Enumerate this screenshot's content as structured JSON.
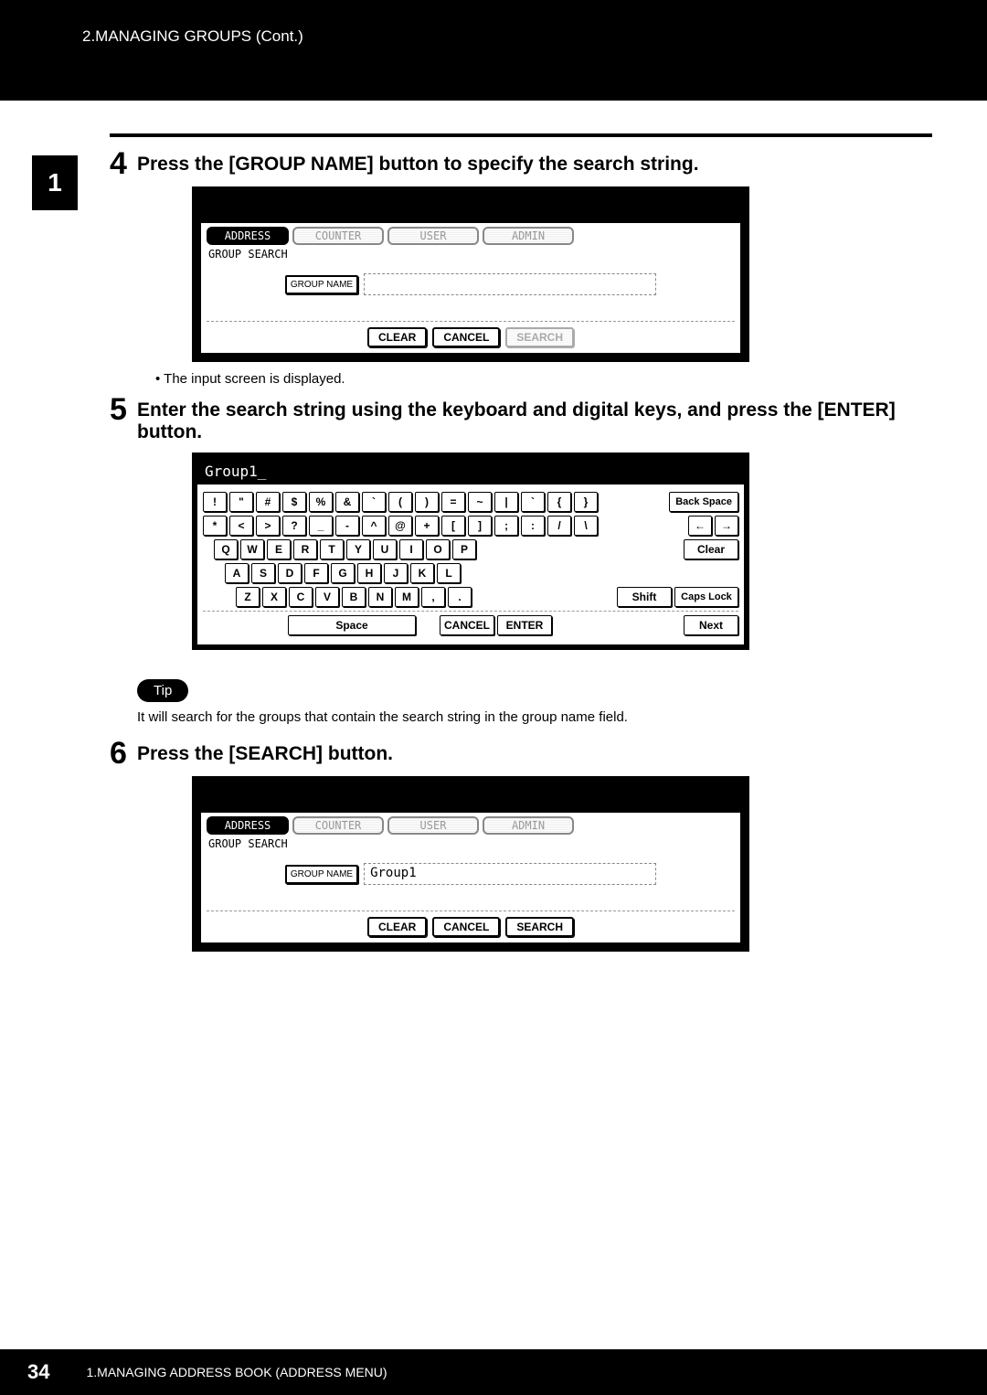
{
  "header": {
    "breadcrumb": "2.MANAGING GROUPS (Cont.)"
  },
  "sideTab": "1",
  "step4": {
    "num": "4",
    "title": "Press the [GROUP NAME] button to specify the search string.",
    "tabs": {
      "address": "ADDRESS",
      "counter": "COUNTER",
      "user": "USER",
      "admin": "ADMIN"
    },
    "sublabel": "GROUP SEARCH",
    "groupNameBtn": "GROUP NAME",
    "groupNameValue": "",
    "clear": "CLEAR",
    "cancel": "CANCEL",
    "search": "SEARCH",
    "bullet": "The input screen is displayed."
  },
  "step5": {
    "num": "5",
    "title": "Enter the search string using the keyboard and digital keys, and press the [ENTER] button.",
    "display": "Group1_",
    "row1": [
      "!",
      "\"",
      "#",
      "$",
      "%",
      "&",
      "`",
      "(",
      ")",
      "=",
      "~",
      "|",
      "`",
      "{",
      "}"
    ],
    "row2": [
      "*",
      "<",
      ">",
      "?",
      "_",
      "-",
      "^",
      "@",
      "+",
      "[",
      "]",
      ";",
      ":",
      "/",
      "\\"
    ],
    "row3": [
      "Q",
      "W",
      "E",
      "R",
      "T",
      "Y",
      "U",
      "I",
      "O",
      "P"
    ],
    "row4": [
      "A",
      "S",
      "D",
      "F",
      "G",
      "H",
      "J",
      "K",
      "L"
    ],
    "row5": [
      "Z",
      "X",
      "C",
      "V",
      "B",
      "N",
      "M",
      ",",
      "."
    ],
    "backspace": "Back Space",
    "arrowL": "←",
    "arrowR": "→",
    "clear": "Clear",
    "shift": "Shift",
    "caps": "Caps Lock",
    "space": "Space",
    "cancel": "CANCEL",
    "enter": "ENTER",
    "next": "Next"
  },
  "tip": {
    "label": "Tip",
    "text": "It will search for the groups that contain the search string in the group name field."
  },
  "step6": {
    "num": "6",
    "title": "Press the [SEARCH] button.",
    "tabs": {
      "address": "ADDRESS",
      "counter": "COUNTER",
      "user": "USER",
      "admin": "ADMIN"
    },
    "sublabel": "GROUP SEARCH",
    "groupNameBtn": "GROUP NAME",
    "groupNameValue": "Group1",
    "clear": "CLEAR",
    "cancel": "CANCEL",
    "search": "SEARCH"
  },
  "footer": {
    "page": "34",
    "title": "1.MANAGING ADDRESS BOOK (ADDRESS MENU)"
  }
}
